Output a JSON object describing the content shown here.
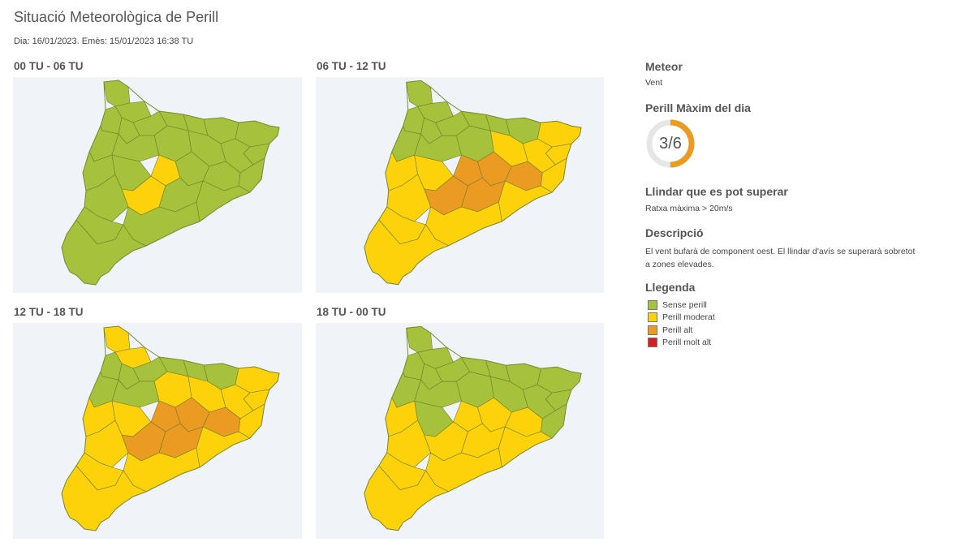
{
  "header": {
    "title": "Situació Meteorològica de Perill",
    "subtitle": "Dia: 16/01/2023. Emès: 15/01/2023 16:38 TU"
  },
  "maps": [
    {
      "label": "00 TU - 06 TU",
      "zones": [
        "green",
        "green",
        "green",
        "green",
        "green",
        "green",
        "green",
        "green",
        "green",
        "green",
        "green",
        "green",
        "green",
        "green",
        "green",
        "green",
        "yellow",
        "green",
        "green",
        "green",
        "green",
        "yellow",
        "green",
        "green",
        "green",
        "green",
        "green",
        "green"
      ]
    },
    {
      "label": "06 TU - 12 TU",
      "zones": [
        "green",
        "green",
        "green",
        "green",
        "green",
        "green",
        "green",
        "green",
        "yellow",
        "yellow",
        "yellow",
        "green",
        "green",
        "green",
        "yellow",
        "yellow",
        "orange",
        "orange",
        "orange",
        "yellow",
        "yellow",
        "orange",
        "orange",
        "yellow",
        "yellow",
        "yellow",
        "yellow",
        "yellow"
      ]
    },
    {
      "label": "12 TU - 18 TU",
      "zones": [
        "yellow",
        "yellow",
        "green",
        "green",
        "green",
        "green",
        "green",
        "green",
        "yellow",
        "yellow",
        "yellow",
        "green",
        "green",
        "yellow",
        "yellow",
        "yellow",
        "orange",
        "orange",
        "orange",
        "yellow",
        "yellow",
        "orange",
        "orange",
        "yellow",
        "yellow",
        "yellow",
        "yellow",
        "yellow"
      ]
    },
    {
      "label": "18 TU - 00 TU",
      "zones": [
        "green",
        "green",
        "green",
        "green",
        "green",
        "green",
        "green",
        "green",
        "green",
        "green",
        "green",
        "green",
        "green",
        "green",
        "green",
        "green",
        "yellow",
        "yellow",
        "yellow",
        "yellow",
        "green",
        "yellow",
        "yellow",
        "yellow",
        "yellow",
        "yellow",
        "yellow",
        "yellow"
      ]
    }
  ],
  "colors": {
    "green": "#a6c13c",
    "yellow": "#fdd20a",
    "orange": "#eb9b22",
    "red": "#d21f1f",
    "gauge_track": "#e6e6e6",
    "gauge_fill": "#eb9b22"
  },
  "side": {
    "meteor_heading": "Meteor",
    "meteor_value": "Vent",
    "max_heading": "Perill Màxim del dia",
    "max_value": "3/6",
    "max_fraction": 0.5,
    "threshold_heading": "Llindar que es pot superar",
    "threshold_value": "Ratxa màxima > 20m/s",
    "desc_heading": "Descripció",
    "desc_line1": "El vent bufarà de component oest. El llindar d'avís se superarà sobretot",
    "desc_line2": "a zones elevades.",
    "legend_heading": "Llegenda",
    "legend": [
      {
        "label": "Sense perill",
        "color": "#a6c13c"
      },
      {
        "label": "Perill moderat",
        "color": "#fdd20a"
      },
      {
        "label": "Perill alt",
        "color": "#eb9b22"
      },
      {
        "label": "Perill molt alt",
        "color": "#d21f1f"
      }
    ]
  }
}
